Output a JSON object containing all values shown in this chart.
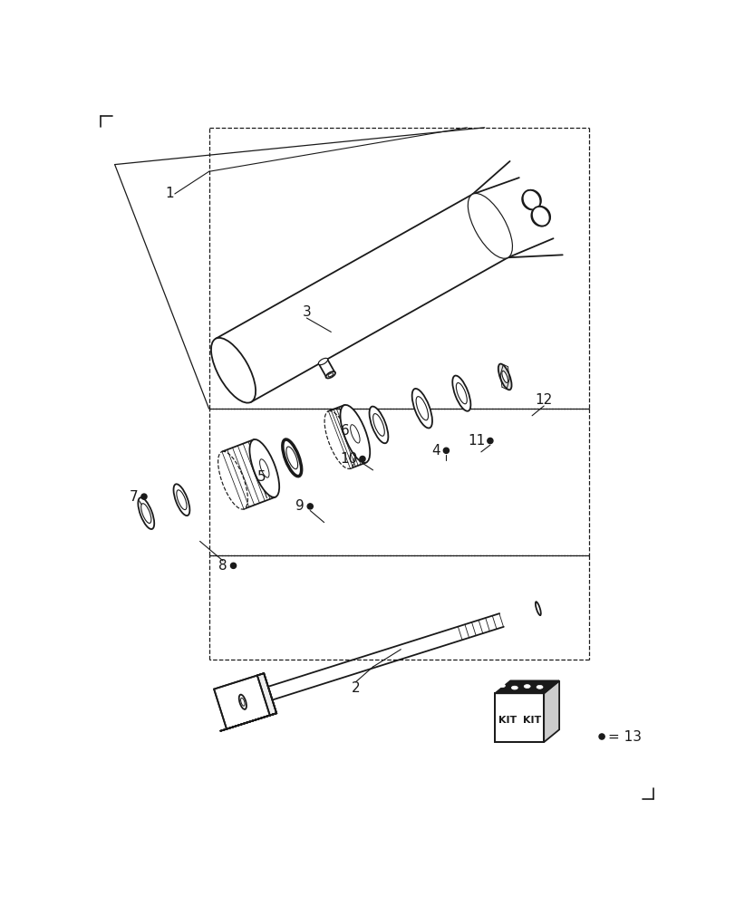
{
  "bg_color": "#ffffff",
  "lc": "#1a1a1a",
  "figsize": [
    8.12,
    10.0
  ],
  "dpi": 100,
  "iso_slope": 0.18,
  "label_fs": 11
}
